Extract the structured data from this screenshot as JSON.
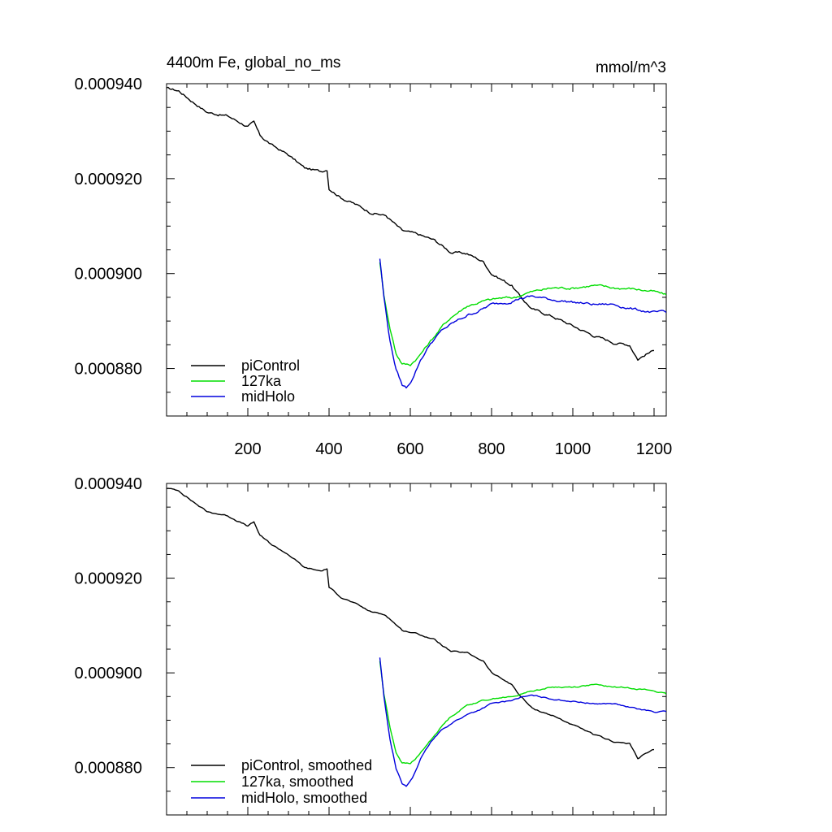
{
  "chart_data": [
    {
      "type": "line",
      "title": "4400m Fe, global_no_ms",
      "units_label": "mmol/m^3",
      "xlim": [
        0,
        1230
      ],
      "ylim": [
        0.00087,
        0.00094
      ],
      "x_ticks": [
        200,
        400,
        600,
        800,
        1000,
        1200
      ],
      "x_tick_labels": [
        "200",
        "400",
        "600",
        "800",
        "1000",
        "1200"
      ],
      "y_ticks": [
        0.00088,
        0.0009,
        0.00092,
        0.00094
      ],
      "y_tick_labels": [
        "0.000880",
        "0.000900",
        "0.000920",
        "0.000940"
      ],
      "legend_position": "bottom-left",
      "series": [
        {
          "name": "piControl",
          "color": "#000000",
          "x": [
            0,
            30,
            60,
            100,
            150,
            200,
            215,
            230,
            260,
            300,
            340,
            380,
            395,
            400,
            430,
            460,
            500,
            540,
            580,
            620,
            660,
            700,
            740,
            780,
            800,
            850,
            870,
            900,
            950,
            1000,
            1050,
            1100,
            1140,
            1160,
            1180,
            1200
          ],
          "y": [
            0.000939,
            0.0009385,
            0.0009365,
            0.000934,
            0.0009332,
            0.000931,
            0.0009318,
            0.000929,
            0.000927,
            0.000925,
            0.0009222,
            0.0009215,
            0.000922,
            0.000918,
            0.000916,
            0.0009148,
            0.000913,
            0.0009122,
            0.000909,
            0.0009082,
            0.000907,
            0.0009045,
            0.0009042,
            0.0009025,
            0.0009,
            0.0008975,
            0.0008952,
            0.0008925,
            0.000891,
            0.000889,
            0.000887,
            0.0008855,
            0.000885,
            0.000882,
            0.000883,
            0.0008838
          ]
        },
        {
          "name": "127ka",
          "color": "#00dd00",
          "x": [
            525,
            535,
            550,
            565,
            580,
            600,
            620,
            650,
            680,
            700,
            740,
            780,
            820,
            860,
            880,
            900,
            950,
            1000,
            1050,
            1100,
            1150,
            1200,
            1230
          ],
          "y": [
            0.0009025,
            0.0008955,
            0.0008885,
            0.0008832,
            0.000881,
            0.0008808,
            0.0008825,
            0.0008858,
            0.000889,
            0.0008908,
            0.0008932,
            0.0008942,
            0.0008948,
            0.000895,
            0.0008958,
            0.0008962,
            0.000897,
            0.000897,
            0.0008975,
            0.000897,
            0.0008968,
            0.0008962,
            0.0008955
          ]
        },
        {
          "name": "midHolo",
          "color": "#0000dd",
          "x": [
            525,
            535,
            550,
            565,
            580,
            590,
            605,
            625,
            650,
            680,
            710,
            740,
            770,
            800,
            840,
            870,
            900,
            950,
            1000,
            1050,
            1100,
            1150,
            1200,
            1230
          ],
          "y": [
            0.0009032,
            0.000895,
            0.0008858,
            0.0008798,
            0.0008765,
            0.000876,
            0.0008778,
            0.0008818,
            0.0008853,
            0.0008882,
            0.0008898,
            0.0008912,
            0.0008922,
            0.0008935,
            0.000894,
            0.0008948,
            0.0008952,
            0.0008945,
            0.000894,
            0.0008935,
            0.0008935,
            0.0008925,
            0.0008918,
            0.0008918
          ]
        }
      ]
    },
    {
      "type": "line",
      "title": "",
      "xlim": [
        0,
        1230
      ],
      "ylim": [
        0.00087,
        0.00094
      ],
      "x_ticks": [
        200,
        400,
        600,
        800,
        1000,
        1200
      ],
      "y_ticks": [
        0.00088,
        0.0009,
        0.00092,
        0.00094
      ],
      "y_tick_labels": [
        "0.000880",
        "0.000900",
        "0.000920",
        "0.000940"
      ],
      "legend_position": "bottom-left",
      "series": [
        {
          "name": "piControl, smoothed",
          "color": "#000000",
          "x": [
            0,
            30,
            60,
            100,
            150,
            200,
            215,
            230,
            260,
            300,
            340,
            380,
            395,
            400,
            430,
            460,
            500,
            540,
            580,
            620,
            660,
            700,
            740,
            780,
            800,
            850,
            870,
            900,
            950,
            1000,
            1050,
            1100,
            1140,
            1160,
            1180,
            1200
          ],
          "y": [
            0.000939,
            0.0009385,
            0.0009365,
            0.000934,
            0.0009332,
            0.000931,
            0.0009318,
            0.000929,
            0.000927,
            0.000925,
            0.0009222,
            0.0009215,
            0.000922,
            0.000918,
            0.000916,
            0.0009148,
            0.000913,
            0.0009122,
            0.000909,
            0.0009082,
            0.000907,
            0.0009045,
            0.0009042,
            0.0009025,
            0.0009,
            0.0008975,
            0.0008952,
            0.0008925,
            0.000891,
            0.000889,
            0.000887,
            0.0008855,
            0.000885,
            0.000882,
            0.000883,
            0.0008838
          ]
        },
        {
          "name": "127ka, smoothed",
          "color": "#00dd00",
          "x": [
            525,
            535,
            550,
            565,
            580,
            600,
            620,
            650,
            680,
            700,
            740,
            780,
            820,
            860,
            880,
            900,
            950,
            1000,
            1050,
            1100,
            1150,
            1200,
            1230
          ],
          "y": [
            0.0009025,
            0.0008955,
            0.0008885,
            0.0008832,
            0.000881,
            0.0008808,
            0.0008825,
            0.0008858,
            0.000889,
            0.0008908,
            0.0008932,
            0.0008942,
            0.0008948,
            0.000895,
            0.0008958,
            0.0008962,
            0.000897,
            0.000897,
            0.0008975,
            0.000897,
            0.0008968,
            0.0008962,
            0.0008955
          ]
        },
        {
          "name": "midHolo, smoothed",
          "color": "#0000dd",
          "x": [
            525,
            535,
            550,
            565,
            580,
            590,
            605,
            625,
            650,
            680,
            710,
            740,
            770,
            800,
            840,
            870,
            900,
            950,
            1000,
            1050,
            1100,
            1150,
            1200,
            1230
          ],
          "y": [
            0.0009032,
            0.000895,
            0.0008858,
            0.0008798,
            0.0008765,
            0.000876,
            0.0008778,
            0.0008818,
            0.0008853,
            0.0008882,
            0.0008898,
            0.0008912,
            0.0008922,
            0.0008935,
            0.000894,
            0.0008948,
            0.0008952,
            0.0008945,
            0.000894,
            0.0008935,
            0.0008935,
            0.0008925,
            0.0008918,
            0.0008918
          ]
        }
      ]
    }
  ]
}
